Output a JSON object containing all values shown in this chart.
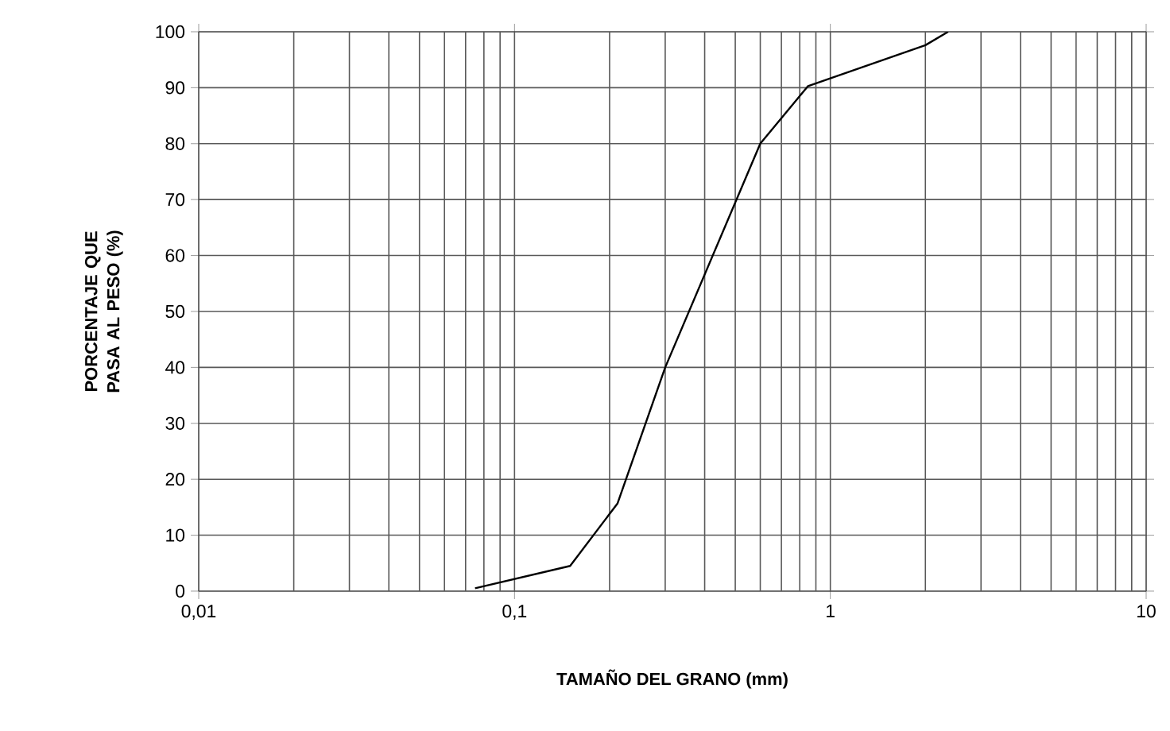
{
  "chart_data": {
    "type": "line",
    "xlabel": "TAMAÑO DEL GRANO (mm)",
    "ylabel": "PORCENTAJE QUE PASA AL PESO (%)",
    "x": [
      0.075,
      0.15,
      0.212,
      0.3,
      0.6,
      0.85,
      2.0,
      2.36
    ],
    "series": [
      {
        "color": "#000000",
        "values": [
          0.5,
          4.5,
          15.7,
          40,
          80,
          90.3,
          97.6,
          100
        ]
      }
    ],
    "log": "x",
    "grid": true,
    "marker": "none",
    "line_style": "solid",
    "xlim": [
      0.01,
      10
    ],
    "xticks": [
      {
        "value": 0.01,
        "label": "0,01"
      },
      {
        "value": 0.1,
        "label": "0,1"
      },
      1,
      10
    ],
    "ylim": [
      0,
      100
    ],
    "yticks": [
      0,
      10,
      20,
      30,
      40,
      50,
      60,
      70,
      80,
      90,
      100
    ]
  }
}
